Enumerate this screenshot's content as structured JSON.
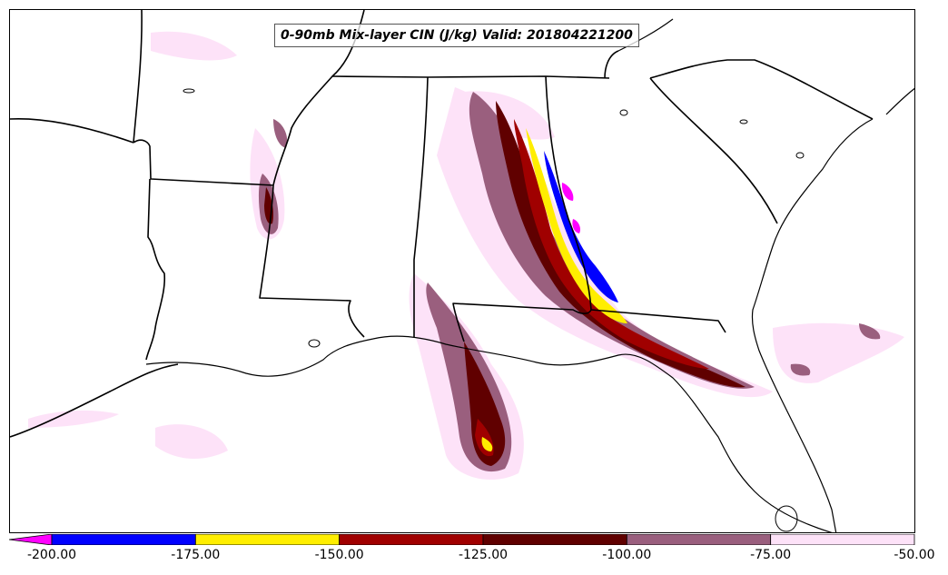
{
  "title": "0-90mb Mix-layer CIN (J/kg) Valid: 201804221200",
  "colorbar": {
    "extend": "min",
    "extend_color": "#ff00ff",
    "bins": [
      {
        "from": -200,
        "to": -175,
        "color": "#0000ff"
      },
      {
        "from": -175,
        "to": -150,
        "color": "#ffee00"
      },
      {
        "from": -150,
        "to": -125,
        "color": "#a00000"
      },
      {
        "from": -125,
        "to": -100,
        "color": "#600000"
      },
      {
        "from": -100,
        "to": -75,
        "color": "#9a5f7e"
      },
      {
        "from": -75,
        "to": -50,
        "color": "#fde2f8"
      }
    ],
    "tick_labels": [
      "-200.00",
      "-175.00",
      "-150.00",
      "-125.00",
      "-100.00",
      "-75.00",
      "-50.00"
    ]
  },
  "map": {
    "region": "Southeastern United States",
    "valid": "201804221200"
  }
}
